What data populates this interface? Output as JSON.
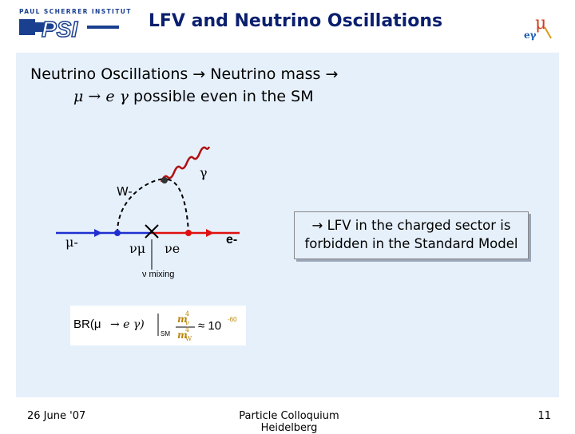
{
  "header": {
    "logo_caption": "PAUL SCHERRER INSTITUT",
    "logo_letters": "PSI",
    "title": "LFV and Neutrino Oscillations",
    "corner_logo_letter": "μ",
    "corner_logo_sub": "eγ"
  },
  "main": {
    "line1": "Neutrino Oscillations → Neutrino mass →",
    "line2_symbols": "μ → e γ",
    "line2_text": "possible even in the SM"
  },
  "diagram": {
    "gamma": "γ",
    "w_minus": "W-",
    "mu_minus": "μ-",
    "nu_mu": "νμ",
    "nu_e": "νe",
    "e_minus": "e-",
    "nu_mixing": "ν mixing"
  },
  "callout": {
    "line1": "→ LFV in the charged sector is",
    "line2": "forbidden in the Standard Model"
  },
  "formula": {
    "br": "BR(μ",
    "arrow": "→ e γ)",
    "sm": "SM",
    "num": "m",
    "num_sub": "ν",
    "num_pow": "4",
    "den": "m",
    "den_sub": "W",
    "den_pow": "4",
    "approx": "≈ 10",
    "exp": "-60"
  },
  "footer": {
    "date": "26 June '07",
    "center": "Particle Colloquium Heidelberg",
    "page": "11"
  },
  "colors": {
    "title": "#0a1f6e",
    "blue_line": "#1f2fd1",
    "red_line": "#e01010",
    "photon": "#b01010",
    "box_bg": "#e6f0fb"
  }
}
